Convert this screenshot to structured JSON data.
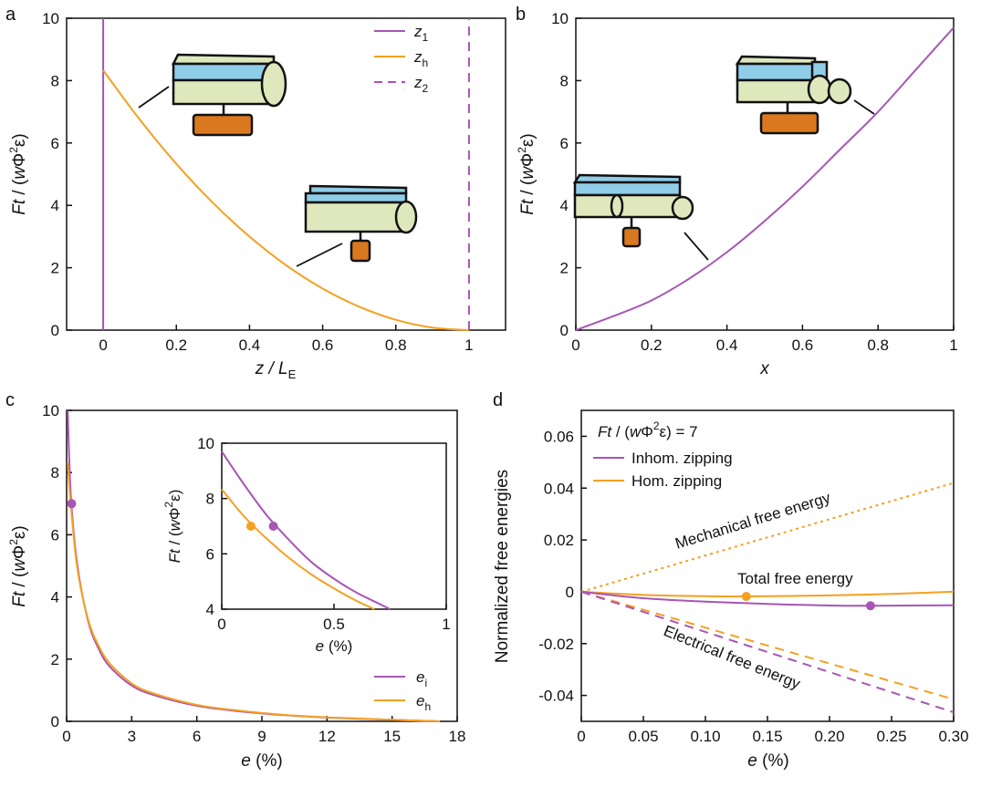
{
  "colors": {
    "purple": "#a855b5",
    "orange": "#f5a020",
    "cyl_blue": "#8fcde8",
    "cyl_green": "#dfe8bc",
    "base": "#d9781e"
  },
  "chart_data": [
    {
      "panel": "a",
      "type": "line",
      "xlabel_main": "z / L",
      "xlabel_sub": "E",
      "ylabel_main": "Ft / (wΦ",
      "ylabel_sup": "2",
      "ylabel_end": "ε)",
      "xlim": [
        -0.1,
        1.1
      ],
      "ylim": [
        0,
        10
      ],
      "xticks": [
        0,
        0.2,
        0.4,
        0.6,
        0.8,
        1
      ],
      "xticklabels": [
        "0",
        "0.2",
        "0.4",
        "0.6",
        "0.8",
        "1"
      ],
      "yticks": [
        0,
        2,
        4,
        6,
        8,
        10
      ],
      "yticklabels": [
        "0",
        "2",
        "4",
        "6",
        "8",
        "10"
      ],
      "legend_position": "top-right",
      "series": [
        {
          "name": "z",
          "sub": "1",
          "style": "solid",
          "color": "purple",
          "x": [
            0,
            0
          ],
          "y": [
            0,
            10
          ]
        },
        {
          "name": "z",
          "sub": "h",
          "style": "solid",
          "color": "orange",
          "x": [
            0,
            0.1,
            0.2,
            0.3,
            0.4,
            0.5,
            0.6,
            0.7,
            0.8,
            0.9,
            1.0
          ],
          "y": [
            8.33,
            6.75,
            5.33,
            4.08,
            3.0,
            2.08,
            1.33,
            0.75,
            0.33,
            0.08,
            0
          ]
        },
        {
          "name": "z",
          "sub": "2",
          "style": "dashed",
          "color": "purple",
          "x": [
            1,
            1
          ],
          "y": [
            0,
            10
          ]
        }
      ]
    },
    {
      "panel": "b",
      "type": "line",
      "xlabel_main": "x",
      "ylabel_main": "Ft / (wΦ",
      "ylabel_sup": "2",
      "ylabel_end": "ε)",
      "xlim": [
        0,
        1
      ],
      "ylim": [
        0,
        10
      ],
      "xticks": [
        0,
        0.2,
        0.4,
        0.6,
        0.8,
        1
      ],
      "xticklabels": [
        "0",
        "0.2",
        "0.4",
        "0.6",
        "0.8",
        "1"
      ],
      "yticks": [
        0,
        2,
        4,
        6,
        8,
        10
      ],
      "yticklabels": [
        "0",
        "2",
        "4",
        "6",
        "8",
        "10"
      ],
      "series": [
        {
          "style": "solid",
          "color": "purple",
          "x": [
            0,
            0.1,
            0.2,
            0.3,
            0.4,
            0.5,
            0.6,
            0.7,
            0.8,
            0.9,
            1.0
          ],
          "y": [
            0,
            0.45,
            0.95,
            1.65,
            2.5,
            3.5,
            4.6,
            5.8,
            7.0,
            8.35,
            9.7
          ]
        }
      ]
    },
    {
      "panel": "c",
      "type": "line",
      "xlabel_main": "e",
      "xlabel_end": " (%)",
      "ylabel_main": "Ft / (wΦ",
      "ylabel_sup": "2",
      "ylabel_end": "ε)",
      "xlim": [
        0,
        18
      ],
      "ylim": [
        0,
        10
      ],
      "xticks": [
        0,
        3,
        6,
        9,
        12,
        15,
        18
      ],
      "xticklabels": [
        "0",
        "3",
        "6",
        "9",
        "12",
        "15",
        "18"
      ],
      "yticks": [
        0,
        2,
        4,
        6,
        8,
        10
      ],
      "yticklabels": [
        "0",
        "2",
        "4",
        "6",
        "8",
        "10"
      ],
      "legend_position": "bottom-right",
      "series": [
        {
          "name": "e",
          "sub": "i",
          "color": "purple",
          "x": [
            0.05,
            0.2,
            0.5,
            1,
            1.5,
            2,
            3,
            4,
            6,
            8,
            10,
            12,
            15,
            17.2
          ],
          "y": [
            10,
            7.2,
            5.0,
            3.2,
            2.3,
            1.75,
            1.15,
            0.85,
            0.5,
            0.32,
            0.2,
            0.12,
            0.05,
            0
          ]
        },
        {
          "name": "e",
          "sub": "h",
          "color": "orange",
          "x": [
            0.05,
            0.2,
            0.5,
            1,
            1.5,
            2,
            3,
            4,
            6,
            8,
            10,
            12,
            15,
            17.2
          ],
          "y": [
            8.33,
            6.9,
            4.9,
            3.25,
            2.4,
            1.85,
            1.22,
            0.9,
            0.53,
            0.34,
            0.21,
            0.13,
            0.05,
            0
          ]
        }
      ],
      "markers": [
        {
          "x": 0.23,
          "y": 7,
          "color": "purple"
        }
      ],
      "inset": {
        "xlim": [
          0,
          1
        ],
        "ylim": [
          4,
          10
        ],
        "xticks": [
          0,
          0.5,
          1
        ],
        "xticklabels": [
          "0",
          "0.5",
          "1"
        ],
        "yticks": [
          4,
          6,
          8,
          10
        ],
        "yticklabels": [
          "4",
          "6",
          "8",
          "10"
        ],
        "xlabel_main": "e",
        "xlabel_end": " (%)",
        "series": [
          {
            "color": "purple",
            "x": [
              0,
              0.1,
              0.2,
              0.3,
              0.4,
              0.5,
              0.6,
              0.7,
              0.75
            ],
            "y": [
              9.7,
              8.5,
              7.4,
              6.5,
              5.7,
              5.1,
              4.6,
              4.2,
              4.0
            ]
          },
          {
            "color": "orange",
            "x": [
              0,
              0.1,
              0.2,
              0.3,
              0.4,
              0.5,
              0.6,
              0.68
            ],
            "y": [
              8.33,
              7.35,
              6.55,
              5.85,
              5.25,
              4.75,
              4.3,
              4.0
            ]
          }
        ],
        "markers": [
          {
            "x": 0.23,
            "y": 7,
            "color": "purple"
          },
          {
            "x": 0.13,
            "y": 7,
            "color": "orange"
          }
        ]
      }
    },
    {
      "panel": "d",
      "type": "line",
      "xlabel_main": "e",
      "xlabel_end": " (%)",
      "ylabel": "Normalized free energies",
      "xlim": [
        0,
        0.3
      ],
      "ylim": [
        -0.05,
        0.07
      ],
      "xticks": [
        0,
        0.05,
        0.1,
        0.15,
        0.2,
        0.25,
        0.3
      ],
      "xticklabels": [
        "0",
        "0.05",
        "0.10",
        "0.15",
        "0.20",
        "0.25",
        "0.30"
      ],
      "yticks": [
        -0.04,
        -0.02,
        0,
        0.02,
        0.04,
        0.06
      ],
      "yticklabels": [
        "-0.04",
        "-0.02",
        "0",
        "0.02",
        "0.04",
        "0.06"
      ],
      "legend_position": "top-left",
      "legend_title_main": "Ft / (wΦ",
      "legend_title_sup": "2",
      "legend_title_end": "ε) = 7",
      "legend_entries": [
        {
          "name": "Inhom. zipping",
          "color": "purple"
        },
        {
          "name": "Hom. zipping",
          "color": "orange"
        }
      ],
      "annotations": [
        "Mechanical free energy",
        "Total free energy",
        "Electrical free energy"
      ],
      "series": [
        {
          "role": "mechanical",
          "color": "orange",
          "style": "dotted",
          "x": [
            0,
            0.3
          ],
          "y": [
            0,
            0.042
          ]
        },
        {
          "role": "total",
          "color": "orange",
          "style": "solid",
          "x": [
            0,
            0.05,
            0.1,
            0.133,
            0.2,
            0.25,
            0.3
          ],
          "y": [
            0,
            -0.0012,
            -0.0017,
            -0.0018,
            -0.0014,
            -0.0008,
            0.0
          ]
        },
        {
          "role": "total",
          "color": "purple",
          "style": "solid",
          "x": [
            0,
            0.05,
            0.1,
            0.15,
            0.2,
            0.233,
            0.3
          ],
          "y": [
            0,
            -0.0025,
            -0.0038,
            -0.0047,
            -0.0053,
            -0.0054,
            -0.0052
          ]
        },
        {
          "role": "electrical",
          "color": "orange",
          "style": "dashed",
          "x": [
            0,
            0.3
          ],
          "y": [
            0,
            -0.0415
          ]
        },
        {
          "role": "electrical",
          "color": "purple",
          "style": "dashed",
          "x": [
            0,
            0.3
          ],
          "y": [
            0,
            -0.0465
          ]
        }
      ],
      "markers": [
        {
          "x": 0.133,
          "y": -0.0018,
          "color": "orange"
        },
        {
          "x": 0.233,
          "y": -0.0054,
          "color": "purple"
        }
      ]
    }
  ]
}
